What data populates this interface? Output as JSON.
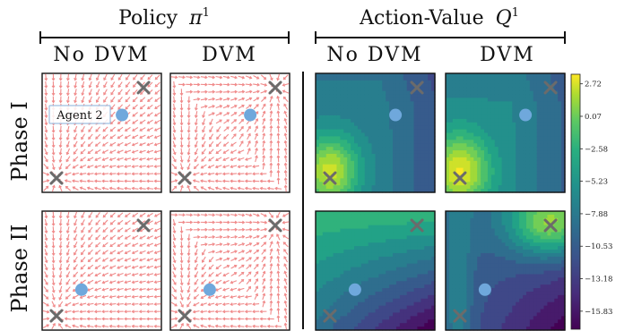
{
  "chart_data": [
    {
      "type": "vector_field",
      "group_title": "Policy",
      "group_title_symbol": "π",
      "group_title_superscript": "1",
      "columns": [
        "No DVM",
        "DVM"
      ],
      "rows": [
        "Phase I",
        "Phase II"
      ],
      "annotation": "Agent 2",
      "arrow_color": "#f08a8a",
      "marker_colors": {
        "agent": "#6fa8dc",
        "goal": "#6b6b6b"
      }
    },
    {
      "type": "heatmap",
      "group_title": "Action-Value",
      "group_title_symbol": "Q",
      "group_title_superscript": "1",
      "columns": [
        "No DVM",
        "DVM"
      ],
      "rows": [
        "Phase I",
        "Phase II"
      ],
      "colormap": "viridis",
      "colorbar_ticks": [
        "2.72",
        "0.07",
        "−2.58",
        "−5.23",
        "−7.88",
        "−10.53",
        "−13.18",
        "−15.83"
      ],
      "colorbar_range": [
        -17.3,
        3.5
      ]
    }
  ]
}
